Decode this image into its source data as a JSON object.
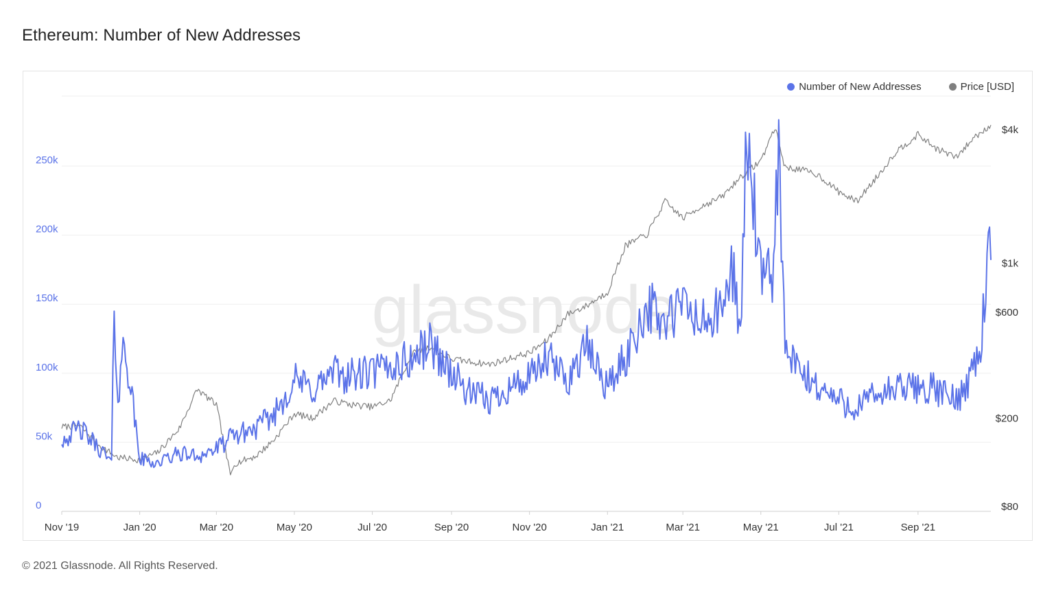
{
  "title": "Ethereum: Number of New Addresses",
  "footer": "© 2021 Glassnode. All Rights Reserved.",
  "watermark": "glassnode",
  "colors": {
    "addresses": "#5b73e8",
    "price": "#7f7f7f",
    "grid": "#efefef"
  },
  "chart_data": {
    "type": "line",
    "title": "Ethereum: Number of New Addresses",
    "legend_position": "top-right",
    "grid": true,
    "x_ticks": [
      "Nov '19",
      "Jan '20",
      "Mar '20",
      "May '20",
      "Jul '20",
      "Sep '20",
      "Nov '20",
      "Jan '21",
      "Mar '21",
      "May '21",
      "Jul '21",
      "Sep '21"
    ],
    "y_left": {
      "ticks": [
        "0",
        "50k",
        "100k",
        "150k",
        "200k",
        "250k"
      ],
      "values": [
        0,
        50000,
        100000,
        150000,
        200000,
        250000
      ],
      "ylim": [
        0,
        250000
      ]
    },
    "y_right": {
      "scale": "log",
      "ticks": [
        "$80",
        "$200",
        "$600",
        "$1k",
        "$4k"
      ],
      "values": [
        80,
        200,
        600,
        1000,
        4000
      ]
    },
    "series": [
      {
        "name": "Number of New Addresses",
        "axis": "left",
        "x": [
          "2019-11-01",
          "2019-11-15",
          "2019-12-01",
          "2019-12-10",
          "2019-12-12",
          "2019-12-15",
          "2019-12-20",
          "2020-01-01",
          "2020-01-15",
          "2020-02-01",
          "2020-02-15",
          "2020-03-01",
          "2020-03-15",
          "2020-04-01",
          "2020-04-15",
          "2020-05-01",
          "2020-05-15",
          "2020-06-01",
          "2020-06-15",
          "2020-07-01",
          "2020-07-15",
          "2020-08-01",
          "2020-08-15",
          "2020-09-01",
          "2020-09-15",
          "2020-10-01",
          "2020-10-15",
          "2020-11-01",
          "2020-11-15",
          "2020-12-01",
          "2020-12-15",
          "2021-01-01",
          "2021-01-15",
          "2021-02-01",
          "2021-02-15",
          "2021-03-01",
          "2021-03-15",
          "2021-04-01",
          "2021-04-10",
          "2021-04-15",
          "2021-04-20",
          "2021-05-01",
          "2021-05-10",
          "2021-05-15",
          "2021-05-20",
          "2021-06-01",
          "2021-06-15",
          "2021-07-01",
          "2021-07-15",
          "2021-08-01",
          "2021-08-15",
          "2021-09-01",
          "2021-09-15",
          "2021-10-01",
          "2021-10-10",
          "2021-10-20",
          "2021-10-27",
          "2021-10-28"
        ],
        "values": [
          52000,
          60000,
          45000,
          35000,
          147000,
          80000,
          125000,
          38000,
          35000,
          42000,
          40000,
          45000,
          55000,
          60000,
          70000,
          95000,
          88000,
          100000,
          98000,
          100000,
          105000,
          110000,
          122000,
          100000,
          85000,
          80000,
          90000,
          95000,
          110000,
          95000,
          120000,
          90000,
          110000,
          150000,
          135000,
          150000,
          135000,
          145000,
          180000,
          120000,
          278000,
          165000,
          170000,
          263000,
          115000,
          100000,
          90000,
          80000,
          75000,
          85000,
          88000,
          90000,
          88000,
          80000,
          95000,
          120000,
          195000,
          182000
        ]
      },
      {
        "name": "Price [USD]",
        "axis": "right",
        "x": [
          "2019-11-01",
          "2019-11-15",
          "2019-12-01",
          "2019-12-15",
          "2020-01-01",
          "2020-01-15",
          "2020-02-01",
          "2020-02-15",
          "2020-03-01",
          "2020-03-12",
          "2020-03-15",
          "2020-04-01",
          "2020-04-15",
          "2020-05-01",
          "2020-05-15",
          "2020-06-01",
          "2020-06-15",
          "2020-07-01",
          "2020-07-15",
          "2020-08-01",
          "2020-08-15",
          "2020-09-01",
          "2020-09-15",
          "2020-10-01",
          "2020-10-15",
          "2020-11-01",
          "2020-11-15",
          "2020-12-01",
          "2020-12-15",
          "2021-01-01",
          "2021-01-15",
          "2021-02-01",
          "2021-02-15",
          "2021-03-01",
          "2021-03-15",
          "2021-04-01",
          "2021-04-15",
          "2021-05-01",
          "2021-05-12",
          "2021-05-20",
          "2021-06-01",
          "2021-06-15",
          "2021-07-01",
          "2021-07-15",
          "2021-08-01",
          "2021-08-15",
          "2021-09-01",
          "2021-09-15",
          "2021-10-01",
          "2021-10-15",
          "2021-10-28"
        ],
        "values": [
          183,
          185,
          150,
          133,
          130,
          140,
          180,
          270,
          230,
          110,
          125,
          135,
          160,
          210,
          200,
          240,
          230,
          225,
          240,
          390,
          420,
          370,
          360,
          350,
          370,
          395,
          450,
          590,
          640,
          740,
          1200,
          1350,
          1900,
          1600,
          1800,
          2000,
          2450,
          2900,
          4100,
          2700,
          2650,
          2500,
          2100,
          1900,
          2500,
          3200,
          3800,
          3300,
          3000,
          3700,
          4200
        ]
      }
    ]
  }
}
